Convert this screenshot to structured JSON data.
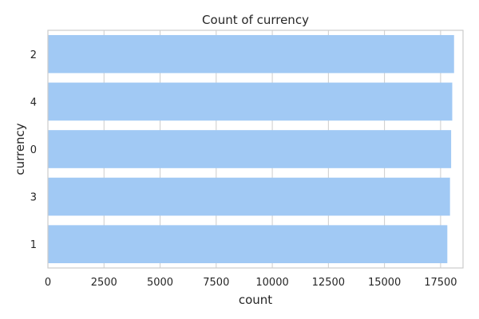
{
  "chart_data": {
    "type": "bar",
    "orientation": "horizontal",
    "title": "Count of currency",
    "xlabel": "count",
    "ylabel": "currency",
    "categories": [
      "2",
      "4",
      "0",
      "3",
      "1"
    ],
    "values": [
      18100,
      18020,
      17970,
      17920,
      17800
    ],
    "xlim": [
      0,
      18500
    ],
    "xticks": [
      0,
      2500,
      5000,
      7500,
      10000,
      12500,
      15000,
      17500
    ],
    "grid": true,
    "legend": "none",
    "bar_color": "#a1c9f4",
    "grid_color": "#cccccc",
    "spine_color": "#cccccc"
  }
}
